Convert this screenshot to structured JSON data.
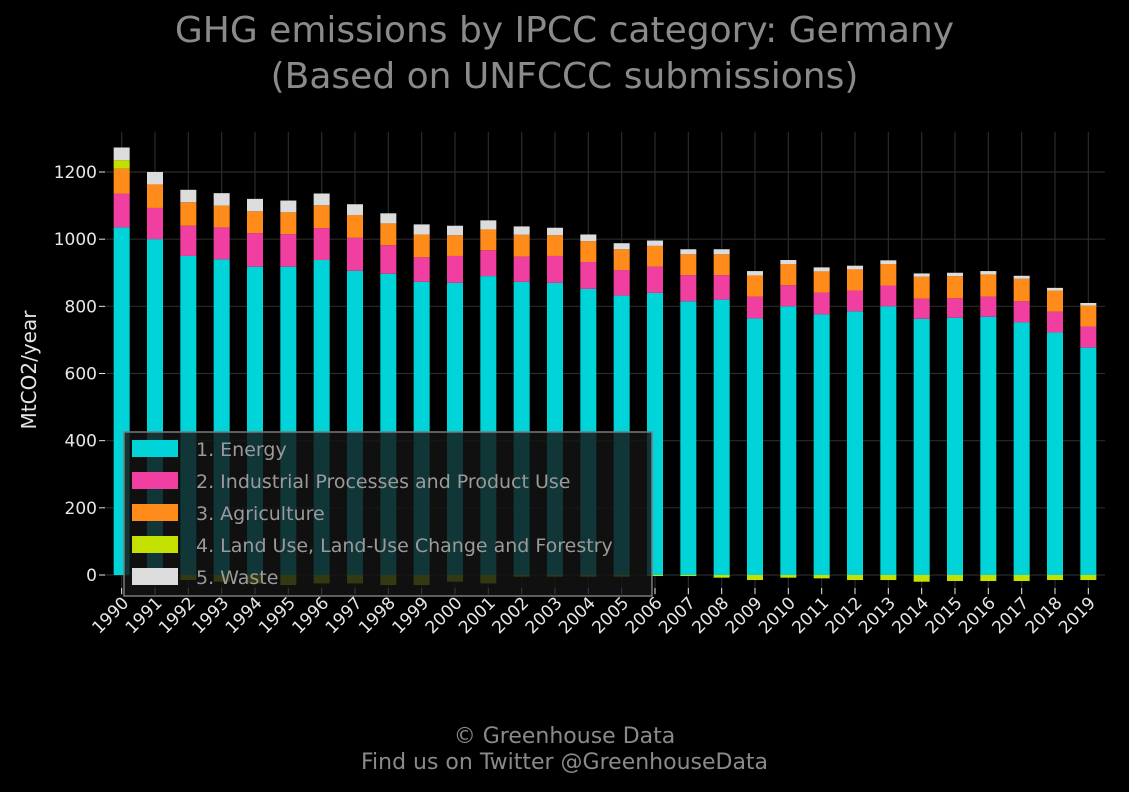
{
  "chart_data": {
    "type": "bar",
    "stacked": true,
    "title_line1": "GHG emissions by IPCC category: Germany",
    "title_line2": "(Based on UNFCCC submissions)",
    "ylabel": "MtCO2/year",
    "xlabel": "",
    "ylim": [
      -60,
      1320
    ],
    "yticks": [
      0,
      200,
      400,
      600,
      800,
      1000,
      1200
    ],
    "grid": true,
    "legend_position": "lower-left",
    "categories": [
      "1990",
      "1991",
      "1992",
      "1993",
      "1994",
      "1995",
      "1996",
      "1997",
      "1998",
      "1999",
      "2000",
      "2001",
      "2002",
      "2003",
      "2004",
      "2005",
      "2006",
      "2007",
      "2008",
      "2009",
      "2010",
      "2011",
      "2012",
      "2013",
      "2014",
      "2015",
      "2016",
      "2017",
      "2018",
      "2019"
    ],
    "series": [
      {
        "name": "1. Energy",
        "color": "#00d4d8",
        "values": [
          1035,
          1000,
          950,
          940,
          918,
          918,
          938,
          906,
          897,
          873,
          870,
          890,
          873,
          870,
          852,
          832,
          840,
          815,
          820,
          764,
          800,
          776,
          785,
          800,
          763,
          766,
          769,
          752,
          722,
          677
        ]
      },
      {
        "name": "2. Industrial Processes and Product Use",
        "color": "#f03fa0",
        "values": [
          100,
          93,
          90,
          95,
          100,
          97,
          95,
          98,
          85,
          73,
          80,
          77,
          75,
          80,
          80,
          76,
          78,
          78,
          73,
          65,
          63,
          65,
          62,
          62,
          60,
          58,
          60,
          63,
          62,
          63
        ]
      },
      {
        "name": "3. Agriculture",
        "color": "#ff8c1a",
        "values": [
          75,
          70,
          70,
          65,
          65,
          65,
          68,
          68,
          65,
          68,
          62,
          62,
          65,
          62,
          62,
          62,
          62,
          62,
          62,
          63,
          63,
          63,
          63,
          64,
          65,
          66,
          66,
          67,
          63,
          62
        ]
      },
      {
        "name": "4. Land Use, Land-Use Change and Forestry",
        "color": "#c4e000",
        "values": [
          25,
          0,
          -15,
          -20,
          -25,
          -30,
          -25,
          -25,
          -30,
          -30,
          -20,
          -25,
          -5,
          -5,
          -5,
          -5,
          -3,
          -3,
          -8,
          -15,
          -8,
          -10,
          -15,
          -15,
          -20,
          -18,
          -18,
          -18,
          -15,
          -15
        ]
      },
      {
        "name": "5. Waste",
        "color": "#dcdcdc",
        "values": [
          38,
          37,
          37,
          37,
          37,
          35,
          35,
          32,
          30,
          30,
          28,
          27,
          25,
          22,
          20,
          18,
          16,
          15,
          15,
          13,
          12,
          12,
          11,
          11,
          10,
          10,
          10,
          9,
          8,
          8
        ]
      }
    ]
  },
  "footer": {
    "copyright": "© Greenhouse Data",
    "twitter": "Find us on Twitter @GreenhouseData"
  }
}
